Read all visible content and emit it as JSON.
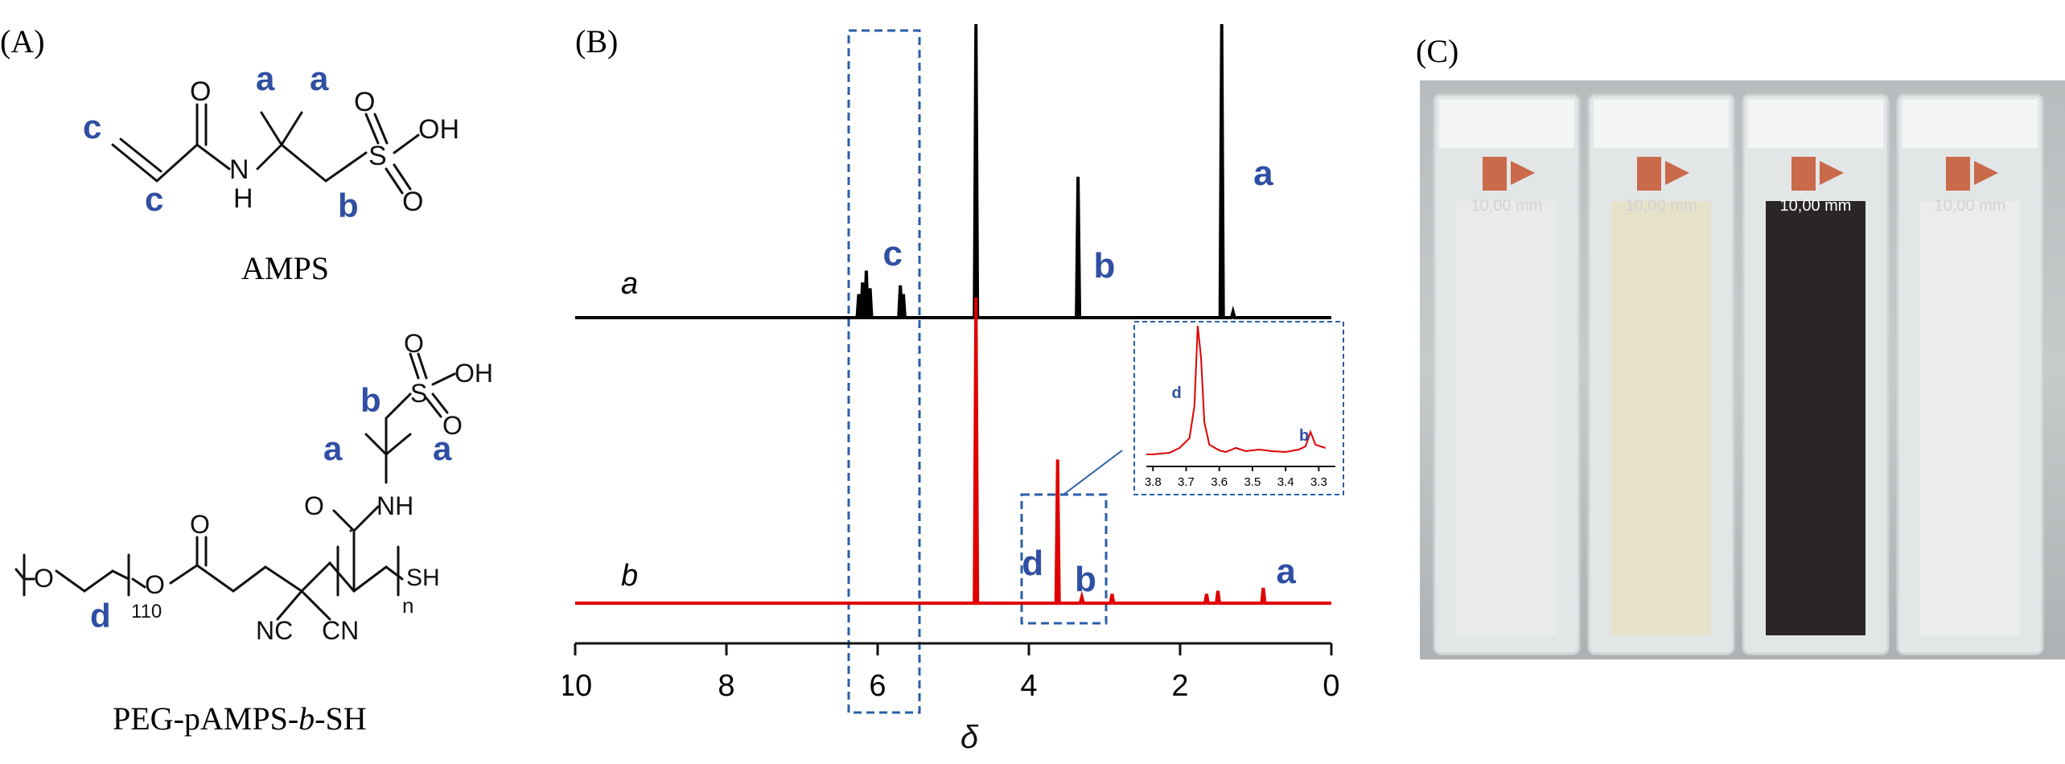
{
  "panels": {
    "a_label": "(A)",
    "b_label": "(B)",
    "c_label": "(C)"
  },
  "panel_a": {
    "molecule1_name": "AMPS",
    "molecule2_name_part1": "PEG-pAMPS-",
    "molecule2_name_italic": "b",
    "molecule2_name_part2": "-SH",
    "atoms": {
      "o": "O",
      "oh": "OH",
      "nh": "NH",
      "n_h": "N",
      "h": "H",
      "s": "S",
      "sh": "SH",
      "nc": "NC",
      "cn": "CN",
      "o_ester": "O",
      "sub_110": "110",
      "sub_n": "n"
    },
    "proton_labels": {
      "a": "a",
      "b": "b",
      "c": "c",
      "d": "d"
    }
  },
  "chart_data": {
    "type": "line",
    "x_axis": {
      "label": "δ",
      "ticks": [
        "10",
        "8",
        "6",
        "4",
        "2",
        "0"
      ],
      "range": [
        10,
        0
      ]
    },
    "series": [
      {
        "trace_label": "a",
        "color": "#000000",
        "peaks": [
          {
            "x": 6.25,
            "h": 0.08
          },
          {
            "x": 6.2,
            "h": 0.12
          },
          {
            "x": 6.15,
            "h": 0.16
          },
          {
            "x": 6.1,
            "h": 0.1
          },
          {
            "x": 5.7,
            "h": 0.11
          },
          {
            "x": 5.66,
            "h": 0.08
          },
          {
            "x": 4.7,
            "h": 1.0
          },
          {
            "x": 3.35,
            "h": 0.48
          },
          {
            "x": 1.45,
            "h": 1.0
          },
          {
            "x": 1.3,
            "h": 0.02
          }
        ],
        "peak_labels": [
          {
            "text": "c",
            "x": 5.8
          },
          {
            "text": "b",
            "x": 3.0
          },
          {
            "text": "a",
            "x": 0.9
          }
        ]
      },
      {
        "trace_label": "b",
        "color": "#e00000",
        "peaks": [
          {
            "x": 4.7,
            "h": 1.0
          },
          {
            "x": 3.62,
            "h": 0.47
          },
          {
            "x": 3.3,
            "h": 0.02
          },
          {
            "x": 2.9,
            "h": 0.03
          },
          {
            "x": 1.65,
            "h": 0.03
          },
          {
            "x": 1.5,
            "h": 0.04
          },
          {
            "x": 0.9,
            "h": 0.05
          }
        ],
        "peak_labels": [
          {
            "text": "d",
            "x": 3.95
          },
          {
            "text": "b",
            "x": 3.25
          },
          {
            "text": "a",
            "x": 0.6
          }
        ]
      }
    ],
    "inset": {
      "ticks": [
        "3.8",
        "3.7",
        "3.6",
        "3.5",
        "3.4",
        "3.3"
      ],
      "range": [
        3.82,
        3.25
      ],
      "peak_labels": [
        {
          "text": "d",
          "x": 3.7
        },
        {
          "text": "b",
          "x": 3.33
        }
      ]
    }
  },
  "panel_c": {
    "cuvette_text": [
      "10,00 mm",
      "10,00 mm",
      "10,00 mm",
      "10,00 mm"
    ],
    "liquid_colors": [
      "#e9ebeb",
      "#e6e2c9",
      "#2a2527",
      "#ebecec"
    ]
  }
}
